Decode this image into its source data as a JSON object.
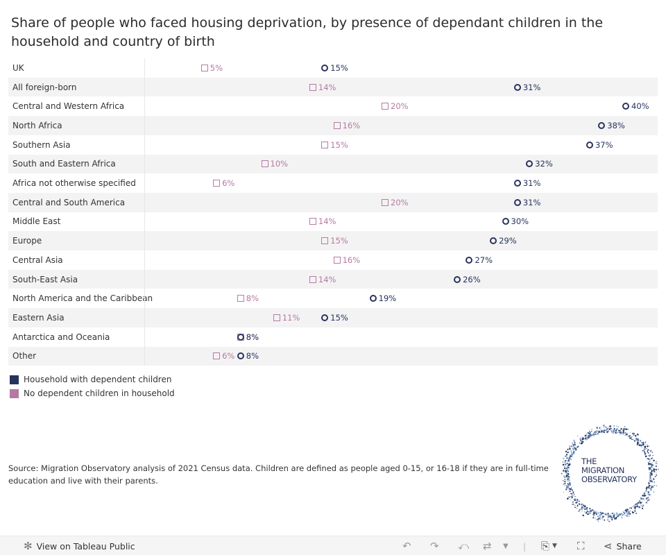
{
  "title": "Share of people who faced housing deprivation, by presence of dependant children in the household and country of birth",
  "chart_data": {
    "type": "dot-plot",
    "title": "Share of people who faced housing deprivation, by presence of dependant children in the household and country of birth",
    "unit": "%",
    "xlim": [
      0,
      42
    ],
    "series": [
      {
        "name": "Household with dependent children",
        "color": "#27335d",
        "marker": "circle"
      },
      {
        "name": "No dependent children in household",
        "color": "#b57aa4",
        "marker": "square"
      }
    ],
    "rows": [
      {
        "label": "UK",
        "with_children": 15,
        "no_children": 5
      },
      {
        "label": "All foreign-born",
        "with_children": 31,
        "no_children": 14
      },
      {
        "label": "Central and Western Africa",
        "with_children": 40,
        "no_children": 20
      },
      {
        "label": "North Africa",
        "with_children": 38,
        "no_children": 16
      },
      {
        "label": "Southern Asia",
        "with_children": 37,
        "no_children": 15
      },
      {
        "label": "South and Eastern Africa",
        "with_children": 32,
        "no_children": 10
      },
      {
        "label": "Africa not otherwise specified",
        "with_children": 31,
        "no_children": 6
      },
      {
        "label": "Central and South America",
        "with_children": 31,
        "no_children": 20
      },
      {
        "label": "Middle East",
        "with_children": 30,
        "no_children": 14
      },
      {
        "label": "Europe",
        "with_children": 29,
        "no_children": 15
      },
      {
        "label": "Central Asia",
        "with_children": 27,
        "no_children": 16
      },
      {
        "label": "South-East Asia",
        "with_children": 26,
        "no_children": 14
      },
      {
        "label": "North America and the Caribbean",
        "with_children": 19,
        "no_children": 8
      },
      {
        "label": "Eastern Asia",
        "with_children": 15,
        "no_children": 11
      },
      {
        "label": "Antarctica and Oceania",
        "with_children": 8,
        "no_children": 8
      },
      {
        "label": "Other",
        "with_children": 8,
        "no_children": 6
      }
    ]
  },
  "legend": {
    "with_children": "Household with dependent children",
    "no_children": "No dependent children in household",
    "with_color": "#27335d",
    "no_color": "#b57aa4"
  },
  "source": "Source: Migration Observatory analysis of 2021 Census data. Children are defined as people aged 0-15, or 16-18 if they are in full-time education and live with their parents.",
  "logo": {
    "line1": "THE",
    "line2": "MIGRATION",
    "line3": "OBSERVATORY"
  },
  "toolbar": {
    "view_label": "View on Tableau Public",
    "share_label": "Share"
  }
}
